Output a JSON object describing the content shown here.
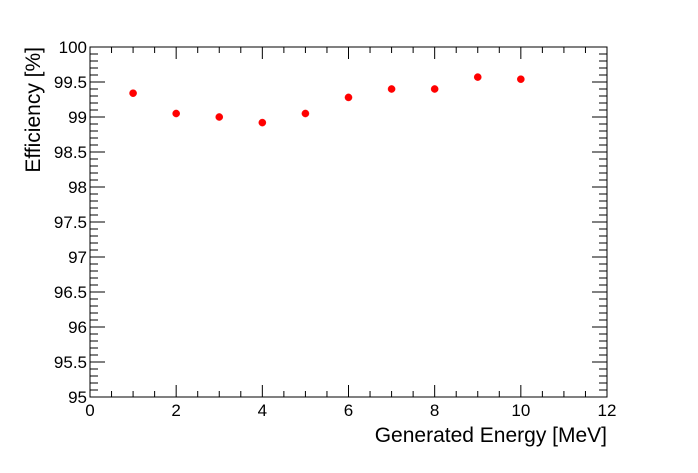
{
  "chart_data": {
    "type": "scatter",
    "title": "",
    "xlabel": "Generated Energy [MeV]",
    "ylabel": "Efficiency [%]",
    "xlim": [
      0,
      12
    ],
    "ylim": [
      95,
      100
    ],
    "x_ticks": [
      "0",
      "2",
      "4",
      "6",
      "8",
      "10",
      "12"
    ],
    "y_ticks": [
      "95",
      "95.5",
      "96",
      "96.5",
      "97",
      "97.5",
      "98",
      "98.5",
      "99",
      "99.5",
      "100"
    ],
    "grid": false,
    "series": [
      {
        "color": "#ff0000",
        "x": [
          1,
          2,
          3,
          4,
          5,
          6,
          7,
          8,
          9,
          10
        ],
        "y": [
          99.34,
          99.05,
          99.0,
          98.92,
          99.05,
          99.28,
          99.4,
          99.4,
          99.57,
          99.54
        ]
      }
    ]
  }
}
